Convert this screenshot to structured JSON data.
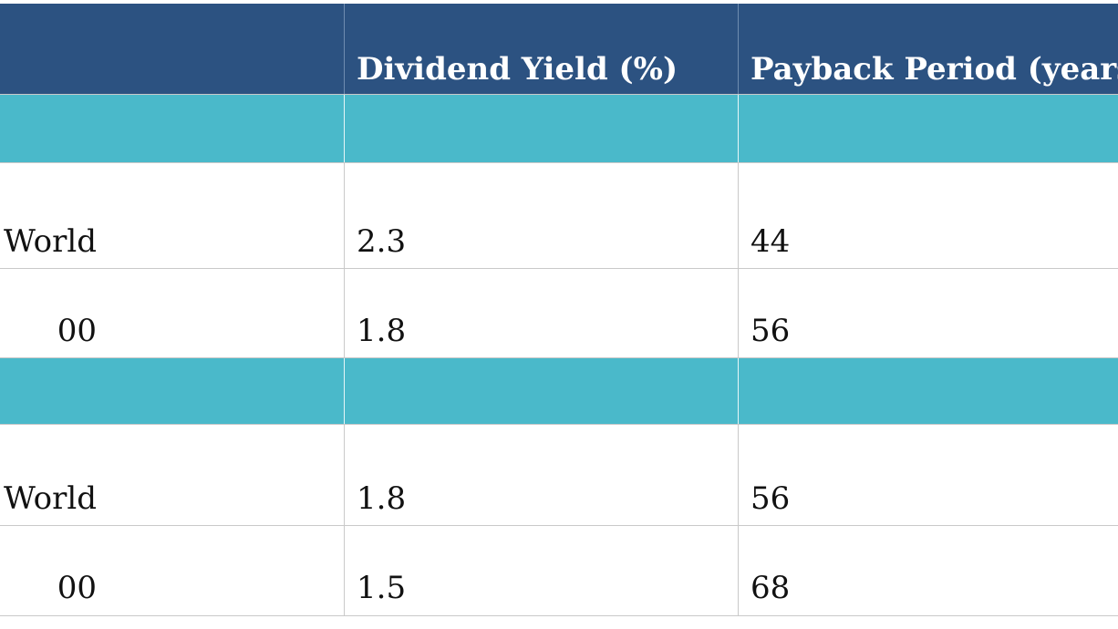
{
  "table": {
    "header": [
      "",
      "Dividend Yield (%)",
      "Payback Period (years)"
    ],
    "rows": [
      {
        "kind": "section",
        "cells": [
          "",
          "",
          ""
        ]
      },
      {
        "kind": "data",
        "cells": [
          "World",
          "2.3",
          "44"
        ]
      },
      {
        "kind": "data",
        "cells": [
          "00",
          "1.8",
          "56"
        ]
      },
      {
        "kind": "section",
        "cells": [
          "",
          "",
          ""
        ]
      },
      {
        "kind": "data",
        "cells": [
          "World",
          "1.8",
          "56"
        ]
      },
      {
        "kind": "data",
        "cells": [
          "00",
          "1.5",
          "68"
        ]
      }
    ]
  },
  "colors": {
    "header_bg": "#2c5281",
    "section_bg": "#4ab9ca",
    "grid_line": "#c9c9c9"
  }
}
